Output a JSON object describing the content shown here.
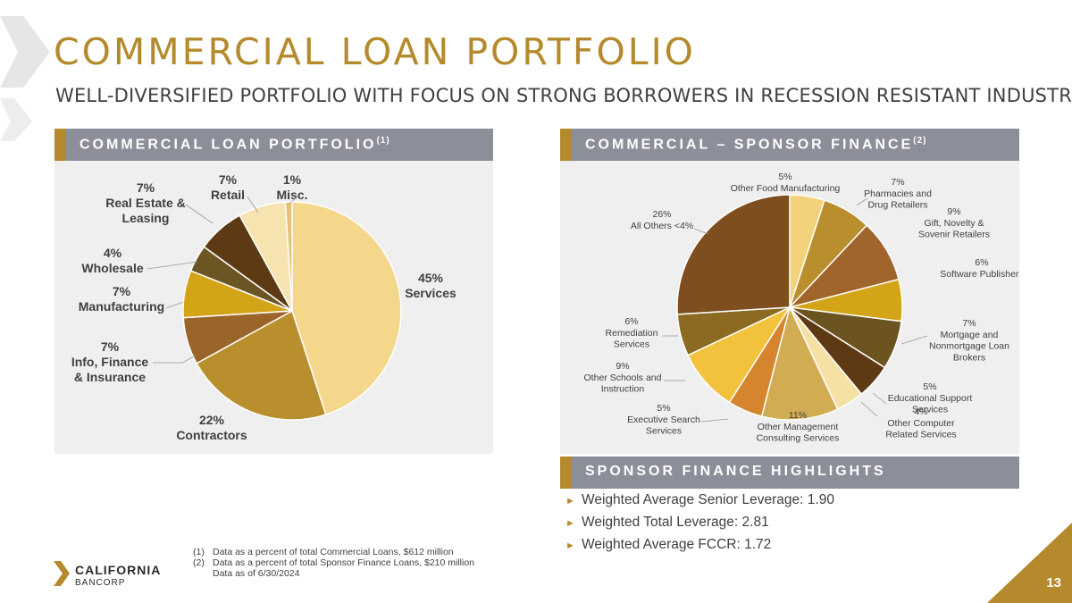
{
  "title": "COMMERCIAL LOAN PORTFOLIO",
  "subtitle": "WELL-DIVERSIFIED PORTFOLIO WITH FOCUS ON STRONG BORROWERS IN RECESSION RESISTANT INDUSTRIES",
  "left_panel": {
    "title": "COMMERCIAL LOAN PORTFOLIO",
    "sup": "(1)"
  },
  "right_panel": {
    "title": "COMMERCIAL – SPONSOR FINANCE",
    "sup": "(2)"
  },
  "highlights_panel": {
    "title": "SPONSOR FINANCE HIGHLIGHTS"
  },
  "highlights": [
    "Weighted Average Senior Leverage: 1.90",
    "Weighted Total Leverage: 2.81",
    "Weighted Average FCCR: 1.72"
  ],
  "footnotes": [
    {
      "num": "(1)",
      "text": "Data as a percent of total Commercial Loans, $612 million"
    },
    {
      "num": "(2)",
      "text": "Data as a percent of total Sponsor Finance Loans, $210 million"
    },
    {
      "num": "",
      "text": "Data as of 6/30/2024"
    }
  ],
  "logo": {
    "name": "CALIFORNIA",
    "sub": "BANCORP"
  },
  "page_number": "13",
  "colors": {
    "gold": "#b48a2c",
    "panel_header": "#8c8f99",
    "panel_body": "#efefef"
  },
  "chart_data": [
    {
      "type": "pie",
      "title": "COMMERCIAL LOAN PORTFOLIO",
      "slices": [
        {
          "label": "Services",
          "pct": "45%",
          "value": 45,
          "color": "#f5d78c"
        },
        {
          "label": "Contractors",
          "pct": "22%",
          "value": 22,
          "color": "#b98f2e"
        },
        {
          "label": "Info, Finance & Insurance",
          "pct": "7%",
          "value": 7,
          "color": "#9b6428"
        },
        {
          "label": "Manufacturing",
          "pct": "7%",
          "value": 7,
          "color": "#d4a418"
        },
        {
          "label": "Wholesale",
          "pct": "4%",
          "value": 4,
          "color": "#6b5522"
        },
        {
          "label": "Real Estate & Leasing",
          "pct": "7%",
          "value": 7,
          "color": "#5e3a14"
        },
        {
          "label": "Retail",
          "pct": "7%",
          "value": 7,
          "color": "#f6e3b0"
        },
        {
          "label": "Misc.",
          "pct": "1%",
          "value": 1,
          "color": "#e3c474"
        }
      ]
    },
    {
      "type": "pie",
      "title": "COMMERCIAL – SPONSOR FINANCE",
      "slices": [
        {
          "label": "Other Food Manufacturing",
          "pct": "5%",
          "value": 5,
          "color": "#f3d27c"
        },
        {
          "label": "Pharmacies and Drug Retailers",
          "pct": "7%",
          "value": 7,
          "color": "#b98f2e"
        },
        {
          "label": "Gift, Novelty & Sovenir Retailers",
          "pct": "9%",
          "value": 9,
          "color": "#a0652a"
        },
        {
          "label": "Software Publishers",
          "pct": "6%",
          "value": 6,
          "color": "#d4a418"
        },
        {
          "label": "Mortgage and Nonmortgage Loan Brokers",
          "pct": "7%",
          "value": 7,
          "color": "#6b5420"
        },
        {
          "label": "Educational Support Services",
          "pct": "5%",
          "value": 5,
          "color": "#5e3a14"
        },
        {
          "label": "Other Computer Related  Services",
          "pct": "4%",
          "value": 4,
          "color": "#f6e1a4"
        },
        {
          "label": "Other Management Consulting Services",
          "pct": "11%",
          "value": 11,
          "color": "#d2ac52"
        },
        {
          "label": "Executive Search Services",
          "pct": "5%",
          "value": 5,
          "color": "#d4852e"
        },
        {
          "label": "Other Schools and Instruction",
          "pct": "9%",
          "value": 9,
          "color": "#f2c23c"
        },
        {
          "label": "Remediation Services",
          "pct": "6%",
          "value": 6,
          "color": "#8c6a22"
        },
        {
          "label": "All Others <4%",
          "pct": "26%",
          "value": 26,
          "color": "#7e4e1e"
        }
      ]
    }
  ]
}
